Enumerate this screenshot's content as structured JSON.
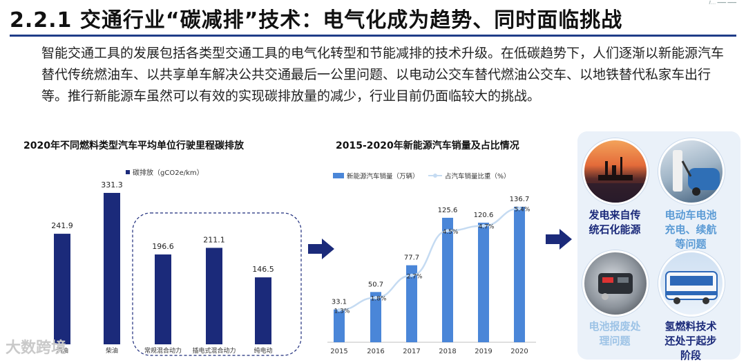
{
  "header": {
    "title": "2.2.1 交通行业“碳减排”技术：电气化成为趋势、同时面临挑战",
    "corner_text": "ℓ… ━━━ ━━━"
  },
  "intro": {
    "text": "智能交通工具的发展包括各类型交通工具的电气化转型和节能减排的技术升级。在低碳趋势下，人们逐渐以新能源汽车替代传统燃油车、以共享单车解决公共交通最后一公里问题、以电动公交车替代燃油公交车、以地铁替代私家车出行等。推行新能源车虽然可以有效的实现碳排放量的减少，行业目前仍面临较大的挑战。"
  },
  "chart_data": [
    {
      "type": "bar",
      "title": "2020年不同燃料类型汽车平均单位行驶里程碳排放",
      "legend": "碳排放（gCO2e/km）",
      "categories": [
        "汽油",
        "柴油",
        "常规混合动力",
        "插电式混合动力",
        "纯电动"
      ],
      "values": [
        241.9,
        331.3,
        196.6,
        211.1,
        146.5
      ],
      "value_labels": [
        "241.9",
        "331.3",
        "196.6",
        "211.1",
        "146.5"
      ],
      "ylim": [
        0,
        360
      ],
      "grid": false,
      "color": "#1b2a7a"
    },
    {
      "type": "bar",
      "title": "2015-2020年新能源汽车销量及占比情况",
      "categories": [
        "2015",
        "2016",
        "2017",
        "2018",
        "2019",
        "2020"
      ],
      "series": [
        {
          "name": "新能源汽车销量（万辆）",
          "kind": "bar",
          "values": [
            33.1,
            50.7,
            77.7,
            125.6,
            120.6,
            136.7
          ],
          "labels": [
            "33.1",
            "50.7",
            "77.7",
            "125.6",
            "120.6",
            "136.7"
          ],
          "color": "#4a86d8"
        },
        {
          "name": "占汽车销量比重（%）",
          "kind": "line",
          "values": [
            1.3,
            1.8,
            2.7,
            4.5,
            4.7,
            5.4
          ],
          "labels": [
            "1.3%",
            "1.8%",
            "2.7%",
            "4.5%",
            "4.7%",
            "5.4%"
          ],
          "color": "#c5dbf2"
        }
      ],
      "ylim": [
        0,
        150
      ],
      "y2lim": [
        0,
        6
      ],
      "grid": false
    }
  ],
  "challenges": [
    {
      "label": "发电来自传统石化能源",
      "line1": "发电来自传",
      "line2": "统石化能源",
      "line3": "",
      "color": "#1b2a7a",
      "icon": "power-plant-sunset-photo"
    },
    {
      "label": "电动车电池充电、续航等问题",
      "line1": "电动车电池",
      "line2": "充电、续航",
      "line3": "等问题",
      "color": "#5b9bd5",
      "icon": "ev-charging-photo"
    },
    {
      "label": "电池报废处理问题",
      "line1": "电池报废处",
      "line2": "理问题",
      "line3": "",
      "color": "#9dc3e6",
      "icon": "battery-engine-photo"
    },
    {
      "label": "氢燃料技术还处于起步阶段",
      "line1": "氢燃料技术",
      "line2": "还处于起步",
      "line3": "阶段",
      "color": "#1b2a7a",
      "icon": "hydrogen-bus-photo"
    }
  ],
  "watermark": {
    "text": "大数跨境"
  }
}
